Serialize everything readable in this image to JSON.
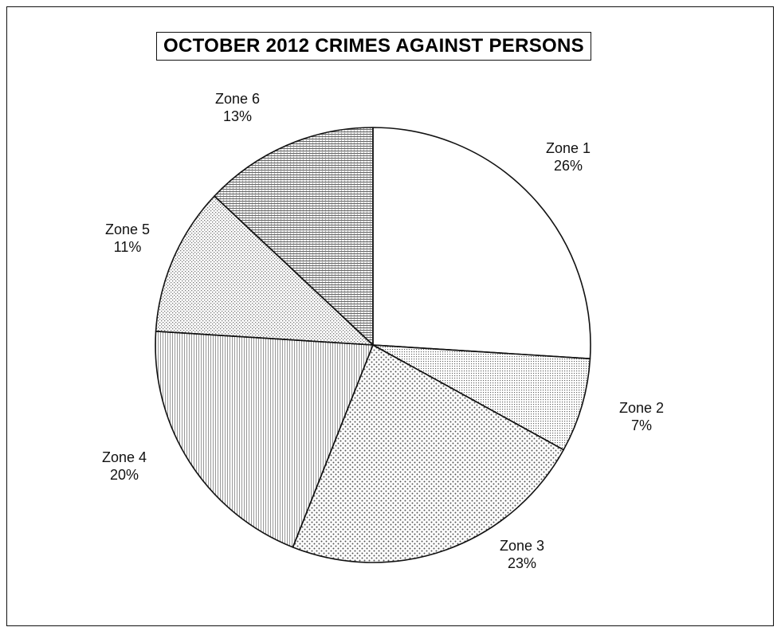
{
  "chart_data": {
    "type": "pie",
    "title": "OCTOBER 2012 CRIMES AGAINST PERSONS",
    "slices": [
      {
        "label": "Zone 1",
        "pct_label": "26%",
        "value": 26,
        "pattern": "none"
      },
      {
        "label": "Zone 2",
        "pct_label": "7%",
        "value": 7,
        "pattern": "fine-dots"
      },
      {
        "label": "Zone 3",
        "pct_label": "23%",
        "value": 23,
        "pattern": "sparse-dots"
      },
      {
        "label": "Zone 4",
        "pct_label": "20%",
        "value": 20,
        "pattern": "vertical-lines"
      },
      {
        "label": "Zone 5",
        "pct_label": "11%",
        "value": 11,
        "pattern": "crosshatch-dots"
      },
      {
        "label": "Zone 6",
        "pct_label": "13%",
        "value": 13,
        "pattern": "horizontal-lines"
      }
    ],
    "start": "12 o'clock",
    "direction": "clockwise",
    "legend": "none",
    "colors": {
      "outline": "#111111",
      "pattern_ink": "#555555",
      "background": "#ffffff"
    }
  }
}
